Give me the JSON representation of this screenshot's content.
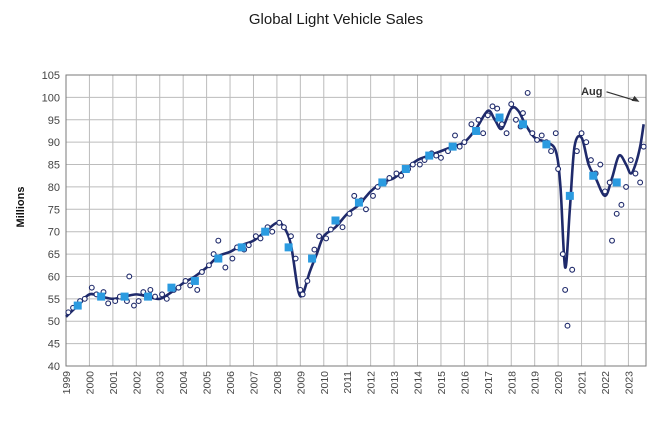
{
  "colors": {
    "line": "#1f2a6b",
    "points_stroke": "#1f2a6b",
    "markers": "#2b9be0",
    "grid": "#bcbcbc",
    "frame": "#7a7a7a"
  },
  "chart_data": {
    "type": "line",
    "title": "Global Light Vehicle Sales",
    "xlabel": "",
    "ylabel": "Millions",
    "xlim": [
      1999,
      2023.75
    ],
    "ylim": [
      40,
      105
    ],
    "x_ticks": [
      "1999",
      "2000",
      "2001",
      "2002",
      "2003",
      "2004",
      "2005",
      "2006",
      "2007",
      "2008",
      "2009",
      "2010",
      "2011",
      "2012",
      "2013",
      "2014",
      "2015",
      "2016",
      "2017",
      "2018",
      "2019",
      "2020",
      "2021",
      "2022",
      "2023"
    ],
    "y_ticks": [
      "40",
      "45",
      "50",
      "55",
      "60",
      "65",
      "70",
      "75",
      "80",
      "85",
      "90",
      "95",
      "100",
      "105"
    ],
    "grid": true,
    "annotation": {
      "text": "Aug",
      "x": 2023.6,
      "y": 99
    },
    "series": [
      {
        "style": "line",
        "x": [
          1999.0,
          1999.5,
          2000.0,
          2000.5,
          2001.0,
          2001.5,
          2002.0,
          2002.5,
          2003.0,
          2003.5,
          2004.0,
          2004.5,
          2005.0,
          2005.5,
          2006.0,
          2006.5,
          2007.0,
          2007.5,
          2008.0,
          2008.3,
          2008.6,
          2008.9,
          2009.1,
          2009.4,
          2009.7,
          2010.0,
          2010.5,
          2011.0,
          2011.5,
          2012.0,
          2012.5,
          2013.0,
          2013.5,
          2014.0,
          2014.5,
          2015.0,
          2015.5,
          2016.0,
          2016.5,
          2017.0,
          2017.3,
          2017.6,
          2018.0,
          2018.3,
          2018.6,
          2019.0,
          2019.5,
          2019.9,
          2020.1,
          2020.3,
          2020.5,
          2020.7,
          2021.0,
          2021.3,
          2021.6,
          2022.0,
          2022.3,
          2022.6,
          2022.9,
          2023.1,
          2023.3,
          2023.5,
          2023.65
        ],
        "values": [
          51,
          53.5,
          56,
          55.5,
          55,
          55.5,
          56,
          55.5,
          55,
          56.5,
          58.5,
          60,
          62,
          64.5,
          65.5,
          67,
          68,
          70,
          72,
          71,
          67,
          57,
          56,
          61,
          65,
          69,
          71,
          74,
          76,
          79,
          81,
          82,
          84,
          86,
          87,
          88,
          89,
          90,
          93,
          97,
          95,
          93,
          97.5,
          97,
          94,
          91,
          90,
          88,
          80,
          62,
          75,
          89,
          91,
          85,
          82,
          78,
          82,
          87,
          85,
          83,
          85,
          89,
          94
        ]
      },
      {
        "style": "markers",
        "x": [
          1999.5,
          2000.5,
          2001.5,
          2002.5,
          2003.5,
          2004.5,
          2005.5,
          2006.5,
          2007.5,
          2008.5,
          2009.5,
          2010.5,
          2011.5,
          2012.5,
          2013.5,
          2014.5,
          2015.5,
          2016.5,
          2017.5,
          2018.5,
          2019.5,
          2020.5,
          2021.5,
          2022.5
        ],
        "values": [
          53.5,
          55.5,
          55.5,
          55.5,
          57.5,
          59,
          64,
          66.5,
          70,
          66.5,
          64,
          72.5,
          76.5,
          81,
          84,
          87,
          89,
          92.5,
          95.5,
          94,
          89.5,
          78,
          82.5,
          81
        ]
      },
      {
        "style": "points",
        "x": [
          1999.1,
          1999.3,
          1999.6,
          1999.8,
          2000.1,
          2000.3,
          2000.6,
          2000.8,
          2001.1,
          2001.3,
          2001.6,
          2001.7,
          2001.9,
          2002.1,
          2002.3,
          2002.6,
          2002.8,
          2003.1,
          2003.3,
          2003.6,
          2003.8,
          2004.1,
          2004.3,
          2004.6,
          2004.8,
          2005.1,
          2005.3,
          2005.5,
          2005.8,
          2006.1,
          2006.3,
          2006.6,
          2006.8,
          2007.1,
          2007.3,
          2007.6,
          2007.8,
          2008.1,
          2008.3,
          2008.6,
          2008.8,
          2009.0,
          2009.1,
          2009.3,
          2009.6,
          2009.8,
          2010.1,
          2010.3,
          2010.6,
          2010.8,
          2011.1,
          2011.3,
          2011.6,
          2011.8,
          2012.1,
          2012.3,
          2012.6,
          2012.8,
          2013.1,
          2013.3,
          2013.6,
          2013.8,
          2014.1,
          2014.3,
          2014.6,
          2014.8,
          2015.0,
          2015.3,
          2015.6,
          2015.8,
          2016.0,
          2016.3,
          2016.6,
          2016.8,
          2017.0,
          2017.2,
          2017.4,
          2017.6,
          2017.8,
          2018.0,
          2018.2,
          2018.4,
          2018.5,
          2018.7,
          2018.9,
          2019.1,
          2019.3,
          2019.5,
          2019.7,
          2019.9,
          2020.0,
          2020.2,
          2020.3,
          2020.4,
          2020.6,
          2020.8,
          2021.0,
          2021.2,
          2021.4,
          2021.6,
          2021.8,
          2022.0,
          2022.2,
          2022.3,
          2022.5,
          2022.7,
          2022.9,
          2023.1,
          2023.3,
          2023.5,
          2023.65
        ],
        "values": [
          52,
          53,
          54.5,
          55,
          57.5,
          56,
          56.5,
          54,
          54.5,
          55.5,
          54.5,
          60,
          53.5,
          54.5,
          56.5,
          57,
          55.5,
          56,
          55,
          57,
          57.5,
          59,
          58,
          57,
          61,
          62.5,
          65,
          68,
          62,
          64,
          66.5,
          66,
          67,
          69,
          68.5,
          71,
          70,
          72,
          71,
          69,
          64,
          57,
          56,
          59,
          66,
          69,
          68.5,
          70.5,
          72,
          71,
          74,
          78,
          77,
          75,
          78,
          80,
          81,
          82,
          83,
          82.5,
          84,
          85,
          85,
          86,
          87.5,
          87,
          86.5,
          88,
          91.5,
          89,
          90,
          94,
          95,
          92,
          96,
          98,
          97.5,
          94,
          92,
          98.5,
          95,
          93.5,
          96.5,
          101,
          92,
          90.5,
          91.5,
          90,
          88,
          92,
          84,
          65,
          57,
          49,
          61.5,
          88,
          92,
          90,
          86,
          83,
          85,
          79,
          81,
          68,
          74,
          76,
          80,
          86,
          83,
          81,
          89
        ]
      }
    ]
  }
}
